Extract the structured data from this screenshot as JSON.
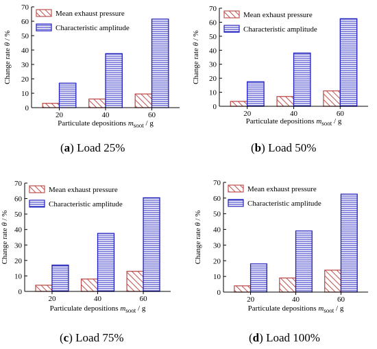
{
  "colors": {
    "mean_exhaust_pressure": "#c0504d",
    "characteristic_amplitude": "#1f1fbf"
  },
  "chart_data": [
    {
      "type": "bar",
      "caption_letter": "a",
      "caption_text": "Load 25%",
      "categories": [
        "20",
        "40",
        "60"
      ],
      "series": [
        {
          "name": "Mean exhaust pressure",
          "values": [
            3,
            6,
            9.5
          ]
        },
        {
          "name": "Characteristic amplitude",
          "values": [
            17,
            37.5,
            61.5
          ]
        }
      ],
      "ylim": [
        0,
        70
      ],
      "yticks": [
        "0",
        "10",
        "20",
        "30",
        "40",
        "50",
        "60",
        "70"
      ],
      "ylabel_prefix": "Change rate",
      "ylabel_var": "θ",
      "ylabel_unit": "/ %",
      "xlabel_prefix": "Particulate depositions",
      "xlabel_var": "m",
      "xlabel_sub": "soot",
      "xlabel_unit": "/ g",
      "legend_position": "top-left"
    },
    {
      "type": "bar",
      "caption_letter": "b",
      "caption_text": "Load 50%",
      "categories": [
        "20",
        "40",
        "60"
      ],
      "series": [
        {
          "name": "Mean exhaust pressure",
          "values": [
            3.5,
            7,
            11
          ]
        },
        {
          "name": "Characteristic amplitude",
          "values": [
            17.5,
            38,
            62.5
          ]
        }
      ],
      "ylim": [
        0,
        70
      ],
      "yticks": [
        "0",
        "10",
        "20",
        "30",
        "40",
        "50",
        "60",
        "70"
      ],
      "ylabel_prefix": "Change rate",
      "ylabel_var": "θ",
      "ylabel_unit": "/ %",
      "xlabel_prefix": "Particulate depositions",
      "xlabel_var": "m",
      "xlabel_sub": "soot",
      "xlabel_unit": "/ g",
      "legend_position": "top-left"
    },
    {
      "type": "bar",
      "caption_letter": "c",
      "caption_text": "Load 75%",
      "categories": [
        "20",
        "40",
        "60"
      ],
      "series": [
        {
          "name": "Mean exhaust pressure",
          "values": [
            4,
            8,
            13
          ]
        },
        {
          "name": "Characteristic amplitude",
          "values": [
            17,
            37.5,
            60.5
          ]
        }
      ],
      "ylim": [
        0,
        70
      ],
      "yticks": [
        "0",
        "10",
        "20",
        "30",
        "40",
        "50",
        "60",
        "70"
      ],
      "ylabel_prefix": "Change rate",
      "ylabel_var": "θ",
      "ylabel_unit": "/ %",
      "xlabel_prefix": "Particulate depositions",
      "xlabel_var": "m",
      "xlabel_sub": "soot",
      "xlabel_unit": "/ g",
      "legend_position": "top-left"
    },
    {
      "type": "bar",
      "caption_letter": "d",
      "caption_text": "Load 100%",
      "categories": [
        "20",
        "40",
        "60"
      ],
      "series": [
        {
          "name": "Mean exhaust pressure",
          "values": [
            4,
            9,
            14
          ]
        },
        {
          "name": "Characteristic amplitude",
          "values": [
            18,
            39,
            62.5
          ]
        }
      ],
      "ylim": [
        0,
        70
      ],
      "yticks": [
        "0",
        "10",
        "20",
        "30",
        "40",
        "50",
        "60",
        "70"
      ],
      "ylabel_prefix": "Change rate",
      "ylabel_var": "θ",
      "ylabel_unit": "/ %",
      "xlabel_prefix": "Particulate depositions",
      "xlabel_var": "m",
      "xlabel_sub": "soot",
      "xlabel_unit": "/ g",
      "legend_position": "top-left"
    }
  ]
}
